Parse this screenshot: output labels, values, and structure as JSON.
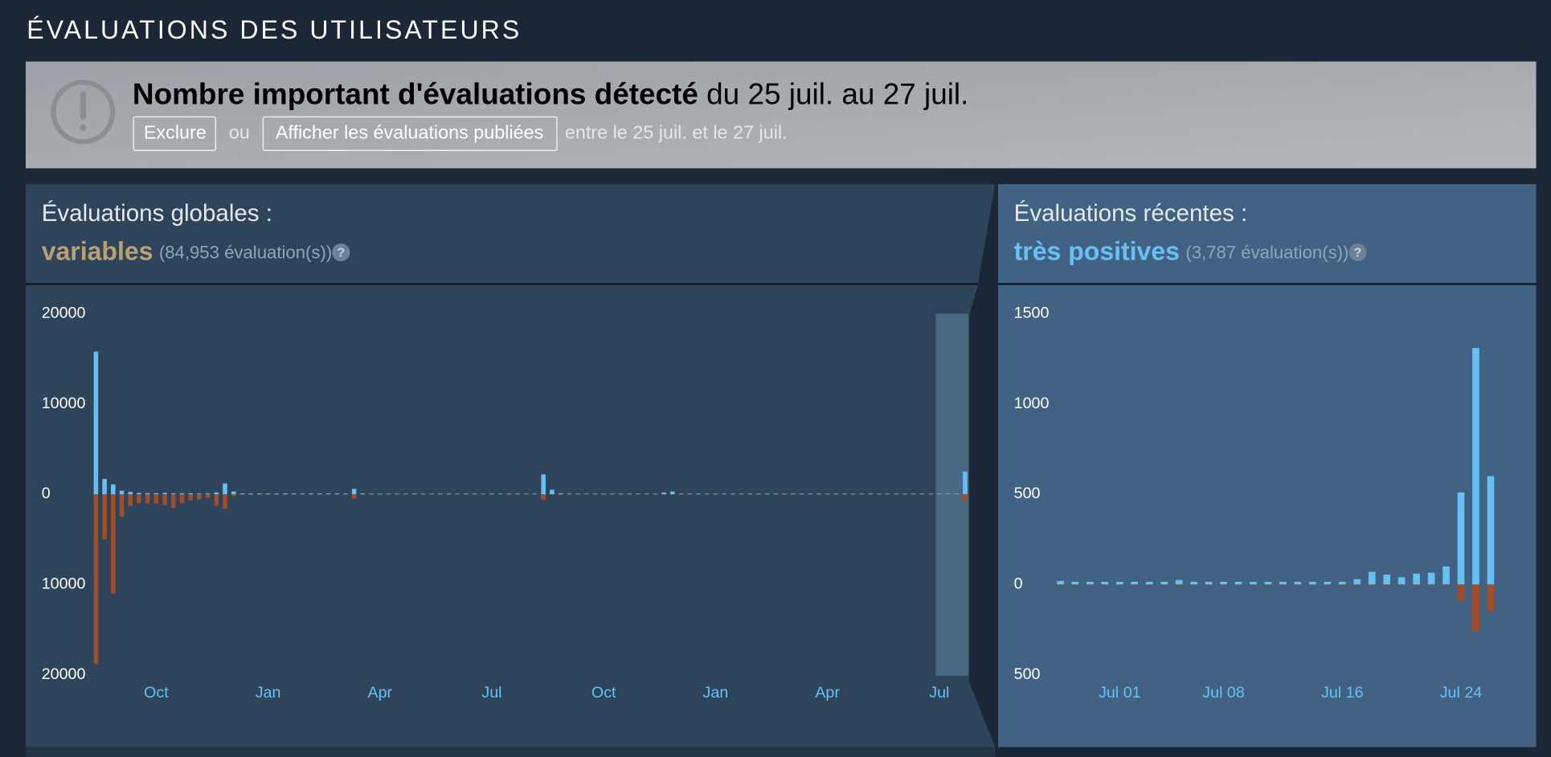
{
  "section_title": "ÉVALUATIONS DES UTILISATEURS",
  "alert": {
    "title_bold": "Nombre important d'évaluations détecté",
    "title_rest": " du 25 juil. au 27 juil.",
    "exclude_button": "Exclure",
    "or": "ou",
    "show_button": "Afficher les évaluations publiées",
    "range_text": "entre le 25 juil. et le 27 juil."
  },
  "chart_data": [
    {
      "type": "bar",
      "title": "Évaluations globales :",
      "rating": "variables",
      "count": "(84,953 évaluation(s))",
      "help": "?",
      "categories": [
        null,
        null,
        null,
        null,
        null,
        null,
        null,
        "Oct",
        null,
        null,
        null,
        null,
        null,
        null,
        null,
        null,
        null,
        null,
        null,
        null,
        "Jan",
        null,
        null,
        null,
        null,
        null,
        null,
        null,
        null,
        null,
        null,
        null,
        null,
        "Apr",
        null,
        null,
        null,
        null,
        null,
        null,
        null,
        null,
        null,
        null,
        null,
        null,
        "Jul",
        null,
        null,
        null,
        null,
        null,
        null,
        null,
        null,
        null,
        null,
        null,
        null,
        "Oct",
        null,
        null,
        null,
        null,
        null,
        null,
        null,
        null,
        null,
        null,
        null,
        null,
        "Jan",
        null,
        null,
        null,
        null,
        null,
        null,
        null,
        null,
        null,
        null,
        null,
        null,
        "Apr",
        null,
        null,
        null,
        null,
        null,
        null,
        null,
        null,
        null,
        null,
        null,
        null,
        "Jul",
        null,
        null,
        null
      ],
      "series": [
        {
          "color": "#66c0f4",
          "values": [
            15800,
            1700,
            1100,
            400,
            250,
            150,
            120,
            120,
            150,
            100,
            100,
            100,
            80,
            100,
            200,
            1200,
            300,
            80,
            80,
            80,
            80,
            80,
            80,
            80,
            80,
            80,
            80,
            80,
            80,
            80,
            600,
            80,
            60,
            60,
            60,
            60,
            60,
            60,
            60,
            60,
            60,
            60,
            60,
            60,
            60,
            60,
            60,
            60,
            60,
            60,
            60,
            60,
            2200,
            500,
            100,
            60,
            60,
            60,
            60,
            60,
            60,
            60,
            60,
            60,
            60,
            60,
            200,
            300,
            60,
            60,
            60,
            60,
            60,
            60,
            60,
            60,
            60,
            60,
            60,
            60,
            60,
            60,
            60,
            60,
            60,
            60,
            60,
            60,
            60,
            60,
            60,
            60,
            60,
            60,
            60,
            60,
            60,
            60,
            60,
            60,
            60,
            2500
          ]
        },
        {
          "color": "#a34c25",
          "values": [
            -18800,
            -5000,
            -11000,
            -2500,
            -1300,
            -1000,
            -1000,
            -1000,
            -1200,
            -1500,
            -1000,
            -700,
            -600,
            -400,
            -1300,
            -1600,
            -200,
            -60,
            -60,
            -60,
            -60,
            -60,
            -60,
            -60,
            -60,
            -60,
            -60,
            -60,
            -60,
            -60,
            -500,
            -60,
            -60,
            -60,
            -60,
            -60,
            -60,
            -60,
            -60,
            -60,
            -60,
            -60,
            -60,
            -60,
            -60,
            -60,
            -60,
            -60,
            -60,
            -60,
            -60,
            -60,
            -600,
            -60,
            -60,
            -60,
            -60,
            -60,
            -60,
            -60,
            -60,
            -60,
            -60,
            -60,
            -60,
            -60,
            -60,
            -60,
            -60,
            -60,
            -60,
            -60,
            -60,
            -60,
            -60,
            -60,
            -60,
            -60,
            -60,
            -60,
            -60,
            -60,
            -60,
            -60,
            -60,
            -60,
            -60,
            -60,
            -60,
            -60,
            -60,
            -60,
            -60,
            -60,
            -60,
            -60,
            -60,
            -60,
            -60,
            -60,
            -60,
            -800
          ]
        }
      ],
      "ylim": [
        -20000,
        20000
      ],
      "yticks": [
        20000,
        10000,
        0,
        {
          "value": -10000,
          "label": "10000"
        },
        {
          "value": -20000,
          "label": "20000"
        }
      ]
    },
    {
      "type": "bar",
      "title": "Évaluations récentes :",
      "rating": "très positives",
      "count": "(3,787 évaluation(s))",
      "help": "?",
      "categories": [
        null,
        null,
        null,
        null,
        "Jul 01",
        null,
        null,
        null,
        null,
        null,
        null,
        "Jul 08",
        null,
        null,
        null,
        null,
        null,
        null,
        null,
        "Jul 16",
        null,
        null,
        null,
        null,
        null,
        null,
        null,
        "Jul 24",
        null,
        null
      ],
      "series": [
        {
          "color": "#66c0f4",
          "values": [
            20,
            15,
            15,
            15,
            15,
            15,
            15,
            15,
            25,
            15,
            15,
            15,
            15,
            15,
            15,
            15,
            15,
            15,
            15,
            15,
            30,
            70,
            55,
            40,
            60,
            65,
            100,
            510,
            1310,
            600
          ]
        },
        {
          "color": "#a34c25",
          "values": [
            -5,
            -5,
            -5,
            -5,
            -5,
            -5,
            -5,
            -5,
            -5,
            -5,
            -5,
            -5,
            -5,
            -5,
            -5,
            -5,
            -5,
            -5,
            -5,
            -5,
            -5,
            -5,
            -5,
            -5,
            -5,
            -5,
            -5,
            -90,
            -260,
            -150
          ]
        }
      ],
      "ylim": [
        -500,
        1500
      ],
      "yticks": [
        1500,
        1000,
        500,
        0,
        {
          "value": -500,
          "label": "500"
        }
      ]
    }
  ]
}
